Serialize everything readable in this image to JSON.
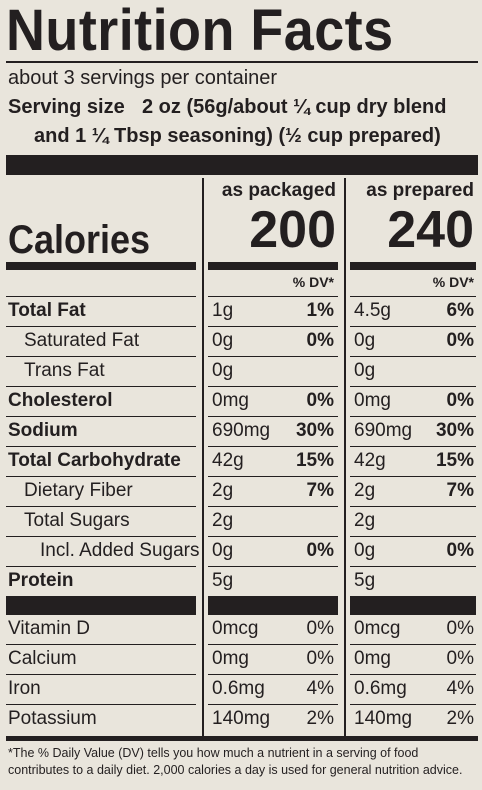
{
  "title": "Nutrition Facts",
  "servings": "about 3 servings per container",
  "serving_size": {
    "label": "Serving size",
    "lines": [
      "2 oz (56g/about ¼ cup dry blend",
      "and 1 ¼ Tbsp seasoning) (½ cup prepared)"
    ]
  },
  "columns": [
    {
      "heading": "as packaged",
      "calories": "200",
      "dv_heading": "% DV*"
    },
    {
      "heading": "as prepared",
      "calories": "240",
      "dv_heading": "% DV*"
    }
  ],
  "calories_label": "Calories",
  "nutrients": [
    {
      "name": "Total Fat",
      "values": [
        {
          "amount": "1g",
          "dv": "1%"
        },
        {
          "amount": "4.5g",
          "dv": "6%"
        }
      ],
      "sub": [
        {
          "name": "Saturated Fat",
          "values": [
            {
              "amount": "0g",
              "dv": "0%"
            },
            {
              "amount": "0g",
              "dv": "0%"
            }
          ]
        },
        {
          "name": "Trans Fat",
          "values": [
            {
              "amount": "0g"
            },
            {
              "amount": "0g"
            }
          ]
        }
      ]
    },
    {
      "name": "Cholesterol",
      "values": [
        {
          "amount": "0mg",
          "dv": "0%"
        },
        {
          "amount": "0mg",
          "dv": "0%"
        }
      ]
    },
    {
      "name": "Sodium",
      "values": [
        {
          "amount": "690mg",
          "dv": "30%"
        },
        {
          "amount": "690mg",
          "dv": "30%"
        }
      ]
    },
    {
      "name": "Total Carbohydrate",
      "values": [
        {
          "amount": "42g",
          "dv": "15%"
        },
        {
          "amount": "42g",
          "dv": "15%"
        }
      ],
      "sub": [
        {
          "name": "Dietary Fiber",
          "values": [
            {
              "amount": "2g",
              "dv": "7%"
            },
            {
              "amount": "2g",
              "dv": "7%"
            }
          ]
        },
        {
          "name": "Total Sugars",
          "values": [
            {
              "amount": "2g"
            },
            {
              "amount": "2g"
            }
          ],
          "sub": [
            {
              "name": "Incl. Added Sugars",
              "values": [
                {
                  "amount": "0g",
                  "dv": "0%"
                },
                {
                  "amount": "0g",
                  "dv": "0%"
                }
              ]
            }
          ]
        }
      ]
    },
    {
      "name": "Protein",
      "values": [
        {
          "amount": "5g"
        },
        {
          "amount": "5g"
        }
      ]
    }
  ],
  "vitamins": [
    {
      "name": "Vitamin D",
      "values": [
        {
          "amount": "0mcg",
          "dv": "0%"
        },
        {
          "amount": "0mcg",
          "dv": "0%"
        }
      ]
    },
    {
      "name": "Calcium",
      "values": [
        {
          "amount": "0mg",
          "dv": "0%"
        },
        {
          "amount": "0mg",
          "dv": "0%"
        }
      ]
    },
    {
      "name": "Iron",
      "values": [
        {
          "amount": "0.6mg",
          "dv": "4%"
        },
        {
          "amount": "0.6mg",
          "dv": "4%"
        }
      ]
    },
    {
      "name": "Potassium",
      "values": [
        {
          "amount": "140mg",
          "dv": "2%"
        },
        {
          "amount": "140mg",
          "dv": "2%"
        }
      ]
    }
  ],
  "footnote": "*The % Daily Value (DV) tells you how much a nutrient in a serving of food contributes to a daily diet. 2,000 calories a day is used for general nutrition advice."
}
